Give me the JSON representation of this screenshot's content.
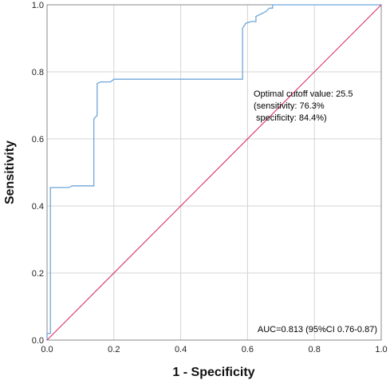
{
  "chart_data": {
    "type": "line",
    "title": "",
    "xlabel": "1 - Specificity",
    "ylabel": "Sensitivity",
    "xlim": [
      0,
      1
    ],
    "ylim": [
      0,
      1
    ],
    "x_ticks": [
      "0.0",
      "0.2",
      "0.4",
      "0.6",
      "0.8",
      "1.0"
    ],
    "y_ticks": [
      "0.0",
      "0.2",
      "0.4",
      "0.6",
      "0.8",
      "1.0"
    ],
    "grid": true,
    "legend": "none",
    "annotations": {
      "cutoff_line1": "Optimal cutoff value: 25.5",
      "cutoff_line2": "(sensitivity: 76.3%",
      "cutoff_line3": " specificity: 84.4%)",
      "auc": "AUC=0.813 (95%CI 0.76-0.87)"
    },
    "series": [
      {
        "color": "#6fa6d9",
        "points": [
          [
            0.0,
            0.0
          ],
          [
            0.0,
            0.02
          ],
          [
            0.01,
            0.02
          ],
          [
            0.01,
            0.455
          ],
          [
            0.065,
            0.455
          ],
          [
            0.075,
            0.46
          ],
          [
            0.14,
            0.46
          ],
          [
            0.14,
            0.66
          ],
          [
            0.15,
            0.67
          ],
          [
            0.15,
            0.765
          ],
          [
            0.16,
            0.77
          ],
          [
            0.19,
            0.77
          ],
          [
            0.2,
            0.778
          ],
          [
            0.585,
            0.778
          ],
          [
            0.585,
            0.93
          ],
          [
            0.595,
            0.945
          ],
          [
            0.61,
            0.95
          ],
          [
            0.625,
            0.95
          ],
          [
            0.625,
            0.965
          ],
          [
            0.645,
            0.975
          ],
          [
            0.655,
            0.98
          ],
          [
            0.665,
            0.99
          ],
          [
            0.675,
            0.99
          ],
          [
            0.675,
            1.0
          ],
          [
            1.0,
            1.0
          ]
        ]
      },
      {
        "color": "#d6336c",
        "points": [
          [
            0,
            0
          ],
          [
            1,
            1
          ]
        ]
      }
    ]
  }
}
